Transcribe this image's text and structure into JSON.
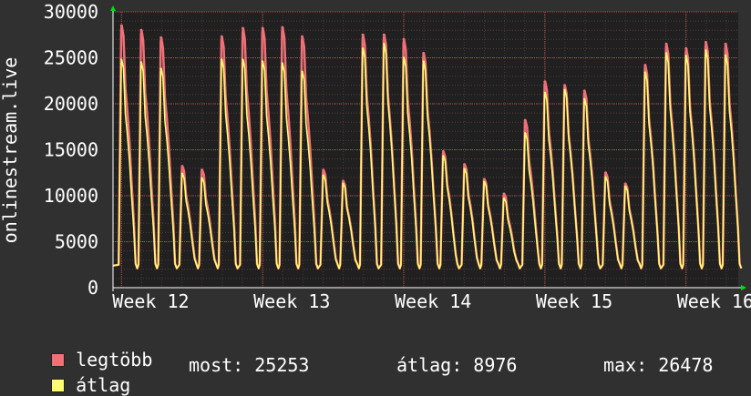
{
  "chart_data": {
    "type": "area",
    "ylabel": "onlinestream.live",
    "ylim": [
      0,
      30000
    ],
    "y_ticks": [
      "0",
      "5000",
      "10000",
      "15000",
      "20000",
      "25000",
      "30000"
    ],
    "x_ticks": [
      {
        "label": "Week 12",
        "week": 12
      },
      {
        "label": "Week 13",
        "week": 13
      },
      {
        "label": "Week 14",
        "week": 14
      },
      {
        "label": "Week 15",
        "week": 15
      },
      {
        "label": "Week 16",
        "week": 16
      }
    ],
    "xlim_weeks": [
      11.94,
      16.37
    ],
    "grid": true,
    "series": [
      {
        "name": "legtöbb",
        "color": "#f07078",
        "role": "max"
      },
      {
        "name": "átlag",
        "color": "#ffff70",
        "role": "average"
      }
    ],
    "daily_peaks": [
      {
        "week": 12.0,
        "max": 28500,
        "avg": 24800
      },
      {
        "week": 12.14,
        "max": 28000,
        "avg": 24500
      },
      {
        "week": 12.28,
        "max": 27200,
        "avg": 23800
      },
      {
        "week": 12.43,
        "max": 13200,
        "avg": 12400
      },
      {
        "week": 12.57,
        "max": 12800,
        "avg": 11900
      },
      {
        "week": 12.71,
        "max": 27300,
        "avg": 24800
      },
      {
        "week": 12.86,
        "max": 28200,
        "avg": 24800
      },
      {
        "week": 13.0,
        "max": 28200,
        "avg": 24600
      },
      {
        "week": 13.14,
        "max": 28300,
        "avg": 24400
      },
      {
        "week": 13.28,
        "max": 27300,
        "avg": 23500
      },
      {
        "week": 13.43,
        "max": 12800,
        "avg": 12200
      },
      {
        "week": 13.57,
        "max": 11600,
        "avg": 11300
      },
      {
        "week": 13.71,
        "max": 27500,
        "avg": 26000
      },
      {
        "week": 13.86,
        "max": 27500,
        "avg": 26500
      },
      {
        "week": 14.0,
        "max": 27000,
        "avg": 25000
      },
      {
        "week": 14.14,
        "max": 25500,
        "avg": 24600
      },
      {
        "week": 14.28,
        "max": 14800,
        "avg": 14300
      },
      {
        "week": 14.43,
        "max": 13400,
        "avg": 12900
      },
      {
        "week": 14.57,
        "max": 11800,
        "avg": 11500
      },
      {
        "week": 14.71,
        "max": 10200,
        "avg": 9700
      },
      {
        "week": 14.86,
        "max": 18200,
        "avg": 16800
      },
      {
        "week": 15.0,
        "max": 22400,
        "avg": 21200
      },
      {
        "week": 15.14,
        "max": 22000,
        "avg": 21500
      },
      {
        "week": 15.28,
        "max": 21400,
        "avg": 20500
      },
      {
        "week": 15.43,
        "max": 12500,
        "avg": 12000
      },
      {
        "week": 15.57,
        "max": 11300,
        "avg": 11000
      },
      {
        "week": 15.71,
        "max": 24200,
        "avg": 23400
      },
      {
        "week": 15.86,
        "max": 26500,
        "avg": 25500
      },
      {
        "week": 16.0,
        "max": 26000,
        "avg": 25200
      },
      {
        "week": 16.14,
        "max": 26700,
        "avg": 25800
      },
      {
        "week": 16.28,
        "max": 26500,
        "avg": 25250
      }
    ],
    "daily_trough": 2100
  },
  "legend": {
    "max_label": "legtöbb",
    "avg_label": "átlag",
    "max_color": "#f07078",
    "avg_color": "#ffff70"
  },
  "stats": {
    "now": "most: 25253",
    "avg": "átlag: 8976",
    "max": "max: 26478"
  },
  "colors": {
    "background": "#303030",
    "plot_area": "#202020",
    "grid": "#7a4a4a",
    "text": "#ffffff",
    "arrow": "#00dd00"
  }
}
